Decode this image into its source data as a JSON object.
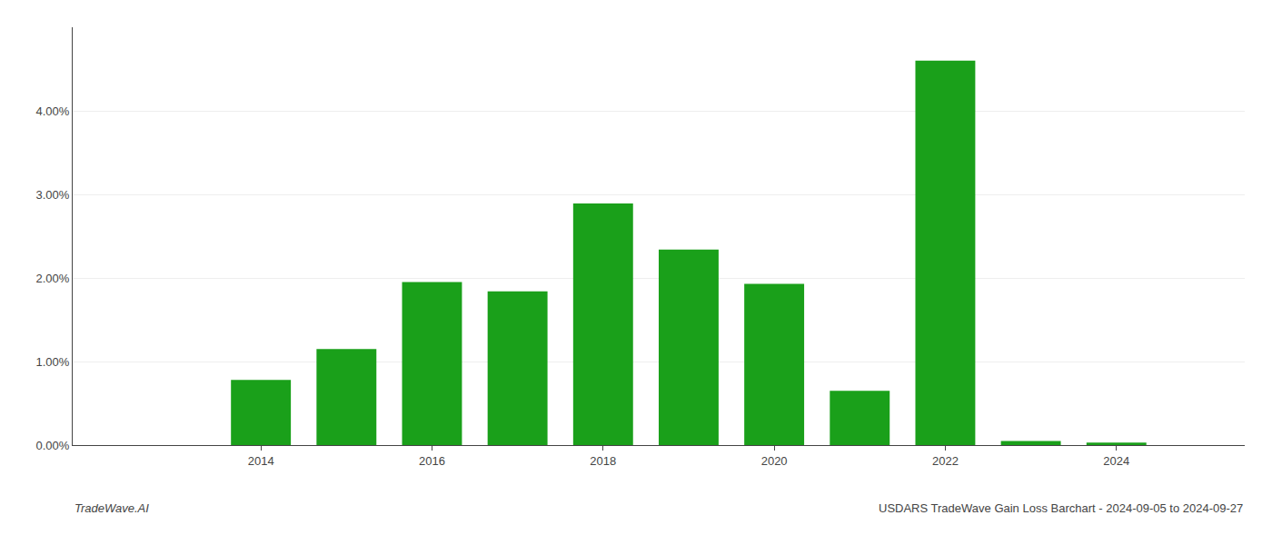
{
  "chart_data": {
    "type": "bar",
    "x": [
      2013,
      2014,
      2015,
      2016,
      2017,
      2018,
      2019,
      2020,
      2021,
      2022,
      2023,
      2024
    ],
    "values": [
      0.0,
      0.0078,
      0.0115,
      0.0195,
      0.0184,
      0.0289,
      0.0234,
      0.0193,
      0.0065,
      0.046,
      0.0005,
      0.0003
    ],
    "color": "#1aa01a",
    "xlim": [
      2011.8,
      2025.5
    ],
    "xticks": [
      2014,
      2016,
      2018,
      2020,
      2022,
      2024
    ],
    "ylim": [
      0,
      0.05
    ],
    "yticks": [
      {
        "value": 0.0,
        "label": "0.00%"
      },
      {
        "value": 0.01,
        "label": "1.00%"
      },
      {
        "value": 0.02,
        "label": "2.00%"
      },
      {
        "value": 0.03,
        "label": "3.00%"
      },
      {
        "value": 0.04,
        "label": "4.00%"
      }
    ],
    "grid": true,
    "annotations": [
      "TradeWave.AI",
      "USDARS TradeWave Gain Loss Barchart - 2024-09-05 to 2024-09-27"
    ]
  }
}
